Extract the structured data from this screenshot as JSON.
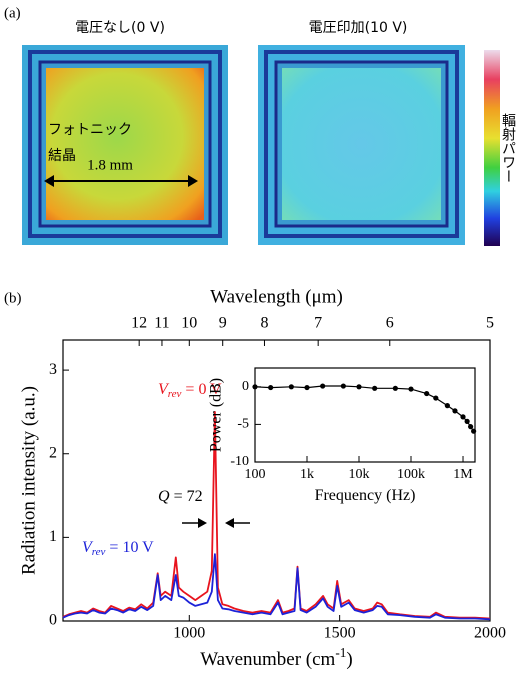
{
  "panel_a": {
    "label": "(a)",
    "left_title": "電圧なし(0 V)",
    "right_title": "電圧印加(10 V)",
    "crystal_label": [
      "フォトニック",
      "結晶"
    ],
    "scale_label": "1.8 mm",
    "colorbar_label": "輻射パワー"
  },
  "panel_b_label": "(b)",
  "chart_data": [
    {
      "type": "line",
      "xlabel": "Wavenumber (cm",
      "xlabel_sup": "-1",
      "xlabel_end": ")",
      "ylabel": "Radiation intensity (a.u.)",
      "x2label": "Wavelength (μm)",
      "xlim": [
        580,
        2000
      ],
      "xticks": [
        1000,
        1500,
        2000
      ],
      "ylim": [
        0,
        3.36
      ],
      "yticks": [
        0,
        1,
        2,
        3
      ],
      "x2ticks": [
        12,
        11,
        10,
        9,
        8,
        7,
        6,
        5
      ],
      "x": [
        580,
        600,
        620,
        640,
        660,
        680,
        700,
        720,
        740,
        760,
        780,
        800,
        820,
        840,
        860,
        880,
        895,
        905,
        920,
        940,
        955,
        965,
        980,
        1000,
        1020,
        1040,
        1060,
        1075,
        1085,
        1095,
        1110,
        1130,
        1150,
        1180,
        1210,
        1240,
        1270,
        1295,
        1310,
        1330,
        1350,
        1360,
        1370,
        1390,
        1420,
        1445,
        1460,
        1480,
        1492,
        1505,
        1530,
        1550,
        1580,
        1610,
        1625,
        1640,
        1660,
        1700,
        1750,
        1800,
        1820,
        1850,
        1900,
        1950,
        2000
      ],
      "series": [
        {
          "color": "#e8141e",
          "values": [
            0.05,
            0.08,
            0.1,
            0.12,
            0.1,
            0.15,
            0.12,
            0.1,
            0.18,
            0.15,
            0.12,
            0.16,
            0.14,
            0.2,
            0.15,
            0.22,
            0.57,
            0.3,
            0.35,
            0.3,
            0.76,
            0.4,
            0.35,
            0.3,
            0.25,
            0.3,
            0.35,
            0.6,
            2.5,
            0.4,
            0.2,
            0.18,
            0.15,
            0.12,
            0.1,
            0.12,
            0.1,
            0.25,
            0.1,
            0.12,
            0.15,
            0.65,
            0.15,
            0.12,
            0.2,
            0.3,
            0.2,
            0.15,
            0.48,
            0.2,
            0.25,
            0.15,
            0.12,
            0.15,
            0.22,
            0.2,
            0.1,
            0.08,
            0.06,
            0.05,
            0.1,
            0.05,
            0.04,
            0.04,
            0.03
          ]
        },
        {
          "color": "#1c22d8",
          "values": [
            0.04,
            0.07,
            0.09,
            0.1,
            0.09,
            0.13,
            0.1,
            0.09,
            0.15,
            0.13,
            0.1,
            0.14,
            0.12,
            0.17,
            0.13,
            0.18,
            0.55,
            0.25,
            0.3,
            0.25,
            0.55,
            0.3,
            0.28,
            0.22,
            0.18,
            0.2,
            0.22,
            0.35,
            0.8,
            0.25,
            0.15,
            0.14,
            0.12,
            0.1,
            0.08,
            0.1,
            0.08,
            0.22,
            0.08,
            0.1,
            0.12,
            0.63,
            0.13,
            0.1,
            0.17,
            0.27,
            0.17,
            0.12,
            0.42,
            0.17,
            0.22,
            0.13,
            0.1,
            0.13,
            0.18,
            0.17,
            0.08,
            0.07,
            0.05,
            0.04,
            0.08,
            0.04,
            0.03,
            0.03,
            0.02
          ]
        }
      ],
      "annotations": [
        {
          "symbol": "V",
          "subscript": "rev",
          "text": " = 0 V",
          "color": "#e8141e"
        },
        {
          "symbol": "V",
          "subscript": "rev",
          "text": " = 10 V",
          "color": "#1c22d8"
        },
        {
          "symbol": "Q",
          "text": " = 72",
          "color": "#000000"
        }
      ]
    },
    {
      "type": "line",
      "log_x": true,
      "xlabel": "Frequency (Hz)",
      "ylabel": "Power (dB)",
      "xlim": [
        100,
        1700000
      ],
      "ylim": [
        -10,
        2.5
      ],
      "xticks": [
        100,
        {
          "value": 1000,
          "label": "1k"
        },
        {
          "value": 10000,
          "label": "10k"
        },
        {
          "value": 100000,
          "label": "100k"
        },
        {
          "value": 1000000,
          "label": "1M"
        }
      ],
      "yticks": [
        0,
        -5,
        -10
      ],
      "x": [
        100,
        200,
        500,
        1000,
        2000,
        5000,
        10000,
        20000,
        50000,
        100000,
        200000,
        300000,
        500000,
        700000,
        1000000,
        1200000,
        1400000,
        1600000
      ],
      "series": [
        {
          "color": "#000000",
          "markers": true,
          "values": [
            0,
            -0.1,
            0,
            -0.1,
            0.1,
            0.1,
            0,
            -0.2,
            -0.2,
            -0.3,
            -0.9,
            -1.5,
            -2.5,
            -3.2,
            -4,
            -4.6,
            -5.3,
            -5.9
          ]
        }
      ]
    }
  ]
}
